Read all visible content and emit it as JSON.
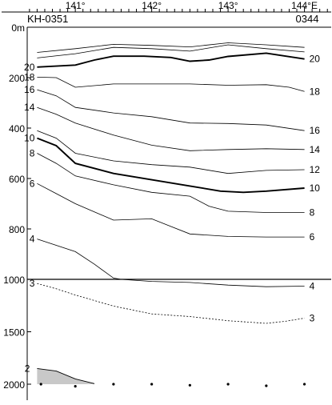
{
  "chart_data": {
    "type": "line",
    "station_left": "KH-0351",
    "station_right": "0344",
    "x_ticks": [
      "141°",
      "142°",
      "143°",
      "144°E"
    ],
    "x_tick_values": [
      141,
      142,
      143,
      144
    ],
    "xlim": [
      140.37,
      144.35
    ],
    "y_ticks": [
      "0m",
      "200",
      "400",
      "600",
      "800",
      "1000",
      "1500",
      "2000"
    ],
    "upper_panel": {
      "depth_range": [
        0,
        1000
      ]
    },
    "lower_panel": {
      "depth_range": [
        1000,
        2000
      ]
    },
    "upper_isotherms": [
      {
        "label": "",
        "thick": false,
        "label_left": "",
        "label_right": "",
        "points": [
          [
            140.5,
            100
          ],
          [
            141.0,
            85
          ],
          [
            141.5,
            68
          ],
          [
            142.0,
            72
          ],
          [
            142.5,
            78
          ],
          [
            143.0,
            62
          ],
          [
            143.5,
            70
          ],
          [
            144.0,
            80
          ]
        ]
      },
      {
        "label": "",
        "thick": false,
        "label_left": "",
        "label_right": "",
        "points": [
          [
            140.5,
            122
          ],
          [
            141.0,
            105
          ],
          [
            141.5,
            80
          ],
          [
            142.0,
            85
          ],
          [
            142.5,
            95
          ],
          [
            143.0,
            70
          ],
          [
            143.5,
            85
          ],
          [
            144.0,
            98
          ]
        ]
      },
      {
        "label": "20",
        "thick": true,
        "label_left": "20",
        "label_right": "20",
        "points": [
          [
            140.5,
            158
          ],
          [
            141.0,
            150
          ],
          [
            141.25,
            130
          ],
          [
            141.5,
            115
          ],
          [
            141.9,
            115
          ],
          [
            142.25,
            120
          ],
          [
            142.5,
            135
          ],
          [
            142.75,
            130
          ],
          [
            143.0,
            116
          ],
          [
            143.5,
            103
          ],
          [
            144.0,
            126
          ]
        ]
      },
      {
        "label": "18",
        "thick": false,
        "label_left": "18",
        "label_right": "18",
        "points": [
          [
            140.5,
            198
          ],
          [
            140.75,
            200
          ],
          [
            141.0,
            238
          ],
          [
            141.5,
            225
          ],
          [
            142.5,
            225
          ],
          [
            143.0,
            230
          ],
          [
            143.5,
            228
          ],
          [
            143.8,
            238
          ],
          [
            144.0,
            255
          ]
        ]
      },
      {
        "label": "16",
        "thick": false,
        "label_left": "16",
        "label_right": "16",
        "points": [
          [
            140.5,
            248
          ],
          [
            140.75,
            272
          ],
          [
            141.0,
            318
          ],
          [
            141.5,
            340
          ],
          [
            142.0,
            355
          ],
          [
            142.5,
            380
          ],
          [
            143.0,
            382
          ],
          [
            143.5,
            388
          ],
          [
            144.0,
            410
          ]
        ]
      },
      {
        "label": "14",
        "thick": false,
        "label_left": "14",
        "label_right": "14",
        "points": [
          [
            140.5,
            318
          ],
          [
            140.75,
            345
          ],
          [
            141.0,
            380
          ],
          [
            141.5,
            428
          ],
          [
            142.0,
            468
          ],
          [
            142.5,
            490
          ],
          [
            143.0,
            485
          ],
          [
            143.5,
            482
          ],
          [
            144.0,
            485
          ]
        ]
      },
      {
        "label": "12",
        "thick": false,
        "label_left": "",
        "label_right": "12",
        "points": [
          [
            140.5,
            410
          ],
          [
            140.75,
            440
          ],
          [
            141.0,
            500
          ],
          [
            141.5,
            530
          ],
          [
            142.0,
            545
          ],
          [
            142.5,
            555
          ],
          [
            143.0,
            580
          ],
          [
            143.5,
            568
          ],
          [
            144.0,
            565
          ]
        ]
      },
      {
        "label": "10",
        "thick": true,
        "label_left": "10",
        "label_right": "10",
        "points": [
          [
            140.5,
            440
          ],
          [
            140.75,
            470
          ],
          [
            141.0,
            540
          ],
          [
            141.5,
            580
          ],
          [
            142.0,
            605
          ],
          [
            142.5,
            630
          ],
          [
            142.9,
            650
          ],
          [
            143.2,
            655
          ],
          [
            143.5,
            650
          ],
          [
            144.0,
            638
          ]
        ]
      },
      {
        "label": "8",
        "thick": false,
        "label_left": "8",
        "label_right": "8",
        "points": [
          [
            140.5,
            500
          ],
          [
            140.75,
            540
          ],
          [
            141.0,
            590
          ],
          [
            141.5,
            625
          ],
          [
            142.0,
            655
          ],
          [
            142.5,
            670
          ],
          [
            142.75,
            710
          ],
          [
            143.0,
            730
          ],
          [
            143.5,
            735
          ],
          [
            144.0,
            735
          ]
        ]
      },
      {
        "label": "6",
        "thick": false,
        "label_left": "6",
        "label_right": "6",
        "points": [
          [
            140.5,
            620
          ],
          [
            140.75,
            660
          ],
          [
            141.0,
            700
          ],
          [
            141.5,
            765
          ],
          [
            142.0,
            760
          ],
          [
            142.25,
            790
          ],
          [
            142.5,
            820
          ],
          [
            143.0,
            830
          ],
          [
            143.5,
            832
          ],
          [
            144.0,
            832
          ]
        ]
      },
      {
        "label": "4",
        "thick": false,
        "label_left": "4",
        "label_right": "",
        "points": [
          [
            140.5,
            840
          ],
          [
            140.75,
            865
          ],
          [
            141.0,
            890
          ],
          [
            141.25,
            940
          ],
          [
            141.5,
            995
          ],
          [
            141.6,
            1000
          ]
        ]
      }
    ],
    "lower_isotherms": [
      {
        "label": "4",
        "dashed": false,
        "label_left": "",
        "label_right": "4",
        "points": [
          [
            141.6,
            1000
          ],
          [
            142.0,
            1020
          ],
          [
            142.5,
            1030
          ],
          [
            143.0,
            1055
          ],
          [
            143.5,
            1070
          ],
          [
            144.0,
            1065
          ]
        ]
      },
      {
        "label": "3",
        "dashed": true,
        "label_left": "3",
        "label_right": "3",
        "points": [
          [
            140.5,
            1040
          ],
          [
            140.75,
            1090
          ],
          [
            141.0,
            1150
          ],
          [
            141.5,
            1255
          ],
          [
            142.0,
            1330
          ],
          [
            142.5,
            1355
          ],
          [
            143.0,
            1395
          ],
          [
            143.5,
            1420
          ],
          [
            143.75,
            1400
          ],
          [
            144.0,
            1370
          ]
        ]
      }
    ],
    "bottom_isotherm": {
      "label": "2",
      "points": [
        [
          140.5,
          1850
        ],
        [
          140.75,
          1875
        ],
        [
          141.0,
          1950
        ],
        [
          141.25,
          1995
        ]
      ]
    },
    "station_x": [
      140.55,
      141.0,
      141.5,
      142.0,
      142.5,
      143.0,
      143.5,
      144.0
    ],
    "station_depth": [
      2000,
      2020,
      2000,
      2000,
      2010,
      2000,
      2015,
      2000
    ]
  }
}
